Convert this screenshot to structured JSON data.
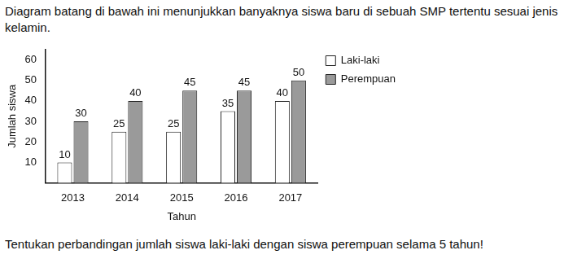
{
  "intro": "Diagram batang di bawah ini menunjukkan banyaknya siswa baru di sebuah SMP tertentu sesuai jenis kelamin.",
  "question": "Tentukan perbandingan jumlah siswa laki-laki dengan siswa perempuan selama 5 tahun!",
  "chart_data": {
    "type": "bar",
    "x_label": "Tahun",
    "y_label": "Jumlah siswa",
    "categories": [
      "2013",
      "2014",
      "2015",
      "2016",
      "2017"
    ],
    "series": [
      {
        "name": "Laki-laki",
        "color": "#ffffff",
        "values": [
          10,
          25,
          25,
          35,
          40
        ]
      },
      {
        "name": "Perempuan",
        "color": "#9a9a9a",
        "values": [
          30,
          40,
          45,
          45,
          50
        ]
      }
    ],
    "ylim": [
      0,
      65
    ],
    "yticks": [
      10,
      20,
      30,
      40,
      50,
      60
    ],
    "grid": false,
    "legend": "top right",
    "data_labels": true
  }
}
